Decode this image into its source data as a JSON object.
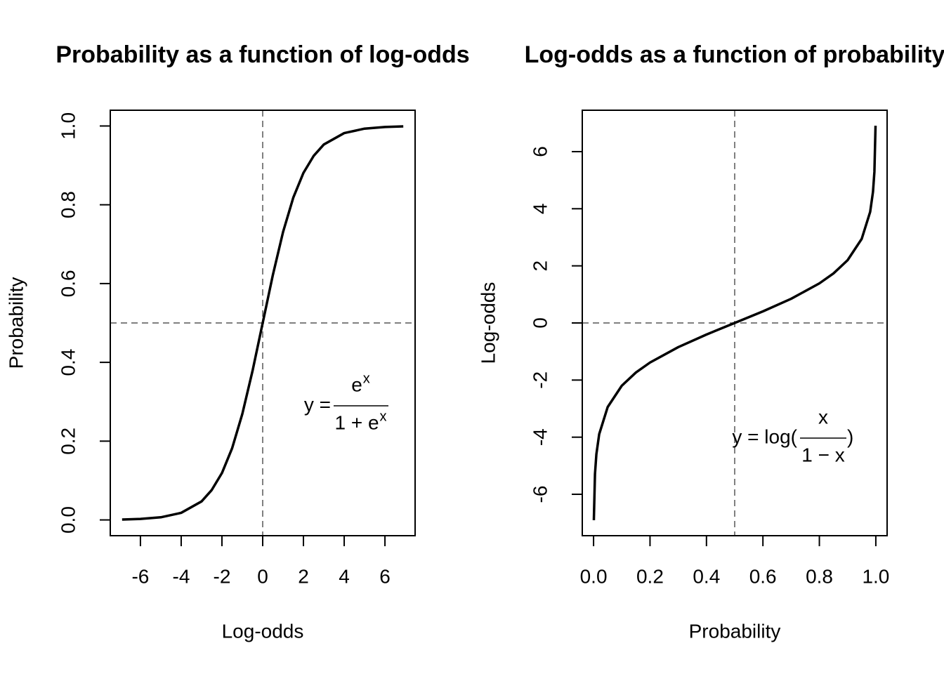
{
  "chart_data": [
    {
      "type": "line",
      "title": "Probability as a function of log-odds",
      "xlabel": "Log-odds",
      "ylabel": "Probability",
      "xlim": [
        -7.48,
        7.48
      ],
      "ylim": [
        -0.04,
        1.04
      ],
      "xticks": [
        -6,
        -4,
        -2,
        0,
        2,
        4,
        6
      ],
      "yticks": [
        {
          "value": 0,
          "label": "0.0"
        },
        0.2,
        0.4,
        0.6,
        0.8,
        {
          "value": 1,
          "label": "1.0"
        }
      ],
      "vline": 0,
      "hline": 0.5,
      "refline_color": "#808080",
      "series": [
        {
          "color": "#000000",
          "x": [
            -6.9,
            -6,
            -5,
            -4,
            -3,
            -2.5,
            -2,
            -1.5,
            -1,
            -0.5,
            0,
            0.5,
            1,
            1.5,
            2,
            2.5,
            3,
            4,
            5,
            6,
            6.9
          ],
          "values": [
            0.001,
            0.0025,
            0.0067,
            0.018,
            0.047,
            0.076,
            0.119,
            0.182,
            0.269,
            0.378,
            0.5,
            0.622,
            0.731,
            0.818,
            0.881,
            0.924,
            0.953,
            0.982,
            0.9933,
            0.9975,
            0.999
          ]
        }
      ],
      "annotation": {
        "lhs": "y =",
        "numerator": "e",
        "numerator_sup": "x",
        "denominator": "1 + e",
        "denominator_sup": "x"
      }
    },
    {
      "type": "line",
      "title": "Log-odds as a function of probability",
      "xlabel": "Probability",
      "ylabel": "Log-odds",
      "xlim": [
        -0.04,
        1.04
      ],
      "ylim": [
        -7.45,
        7.45
      ],
      "xticks": [
        {
          "value": 0,
          "label": "0.0"
        },
        0.2,
        0.4,
        0.6,
        0.8,
        {
          "value": 1,
          "label": "1.0"
        }
      ],
      "yticks": [
        -6,
        -4,
        -2,
        0,
        2,
        4,
        6
      ],
      "vline": 0.5,
      "hline": 0,
      "refline_color": "#808080",
      "series": [
        {
          "color": "#000000",
          "x": [
            0.001,
            0.005,
            0.01,
            0.02,
            0.05,
            0.1,
            0.15,
            0.2,
            0.3,
            0.4,
            0.5,
            0.6,
            0.7,
            0.8,
            0.85,
            0.9,
            0.95,
            0.98,
            0.99,
            0.995,
            0.999
          ],
          "values": [
            -6.907,
            -5.293,
            -4.595,
            -3.892,
            -2.944,
            -2.197,
            -1.735,
            -1.386,
            -0.847,
            -0.405,
            0,
            0.405,
            0.847,
            1.386,
            1.735,
            2.197,
            2.944,
            3.892,
            4.595,
            5.293,
            6.907
          ]
        }
      ],
      "annotation": {
        "lhs": "y = log(",
        "numerator": "x",
        "denominator": "1 − x",
        "rhs": ")"
      }
    }
  ]
}
